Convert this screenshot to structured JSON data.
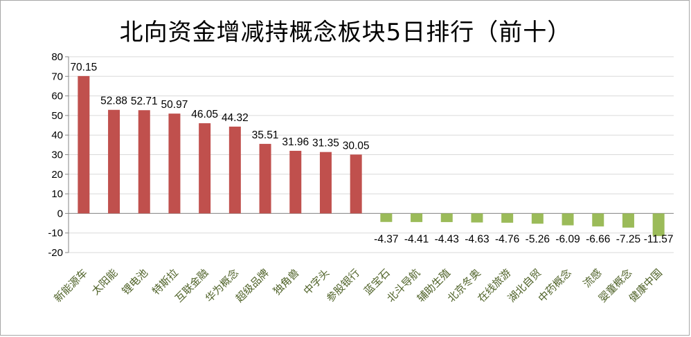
{
  "chart_data": {
    "type": "bar",
    "title": "北向资金增减持概念板块5日排行（前十）",
    "xlabel": "",
    "ylabel": "",
    "ylim": [
      -20,
      80
    ],
    "yticks": [
      -20,
      -10,
      0,
      10,
      20,
      30,
      40,
      50,
      60,
      70,
      80
    ],
    "grid": true,
    "legend": "none",
    "categories": [
      "新能源车",
      "太阳能",
      "锂电池",
      "特斯拉",
      "互联金融",
      "华为概念",
      "超级品牌",
      "独角兽",
      "中字头",
      "参股银行",
      "蓝宝石",
      "北斗导航",
      "辅助生殖",
      "北京冬奥",
      "在线旅游",
      "湖北自贸",
      "中药概念",
      "流感",
      "婴童概念",
      "健康中国"
    ],
    "values": [
      70.15,
      52.88,
      52.71,
      50.97,
      46.05,
      44.32,
      35.51,
      31.96,
      31.35,
      30.05,
      -4.37,
      -4.41,
      -4.43,
      -4.63,
      -4.76,
      -5.26,
      -6.09,
      -6.66,
      -7.25,
      -11.57
    ],
    "data_labels": [
      "70.15",
      "52.88",
      "52.71",
      "50.97",
      "46.05",
      "44.32",
      "35.51",
      "31.96",
      "31.35",
      "30.05",
      "-4.37",
      "-4.41",
      "-4.43",
      "-4.63",
      "-4.76",
      "-5.26",
      "-6.09",
      "-6.66",
      "-7.25",
      "-11.57"
    ],
    "colors": {
      "positive": "#c0504d",
      "negative": "#9bbb59",
      "category_text": "#4f6228",
      "grid": "#d9d9d9"
    }
  }
}
